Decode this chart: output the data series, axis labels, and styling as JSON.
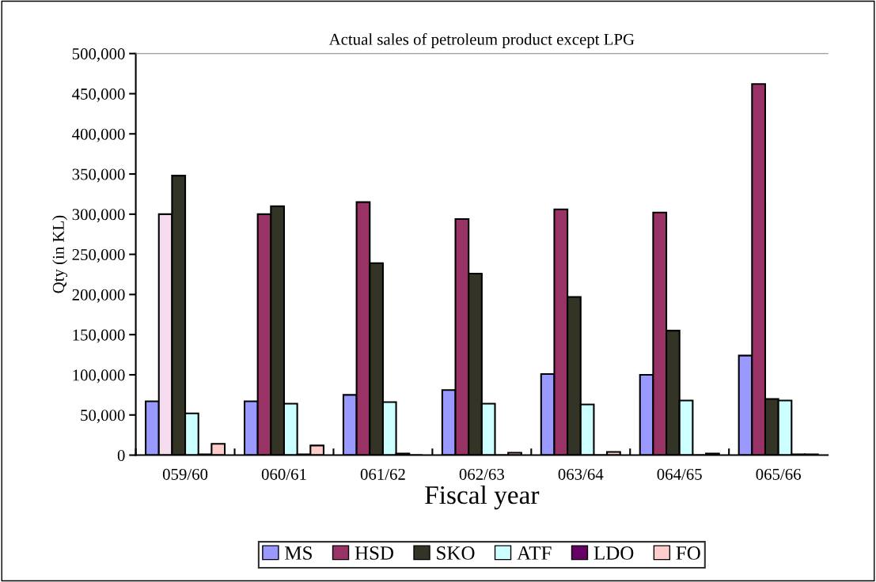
{
  "chart_data": {
    "type": "bar",
    "title": "Actual sales of petroleum product except LPG",
    "xlabel": "Fiscal year",
    "ylabel": "Qty (in KL)",
    "categories": [
      "059/60",
      "060/61",
      "061/62",
      "062/63",
      "063/64",
      "064/65",
      "065/66"
    ],
    "series": [
      {
        "name": "MS",
        "color": "#9999ff",
        "values": [
          67000,
          67000,
          75000,
          81000,
          101000,
          100000,
          124000
        ]
      },
      {
        "name": "HSD",
        "color": "#993366",
        "colors": [
          "#f6dcef",
          "#993366",
          "#993366",
          "#993366",
          "#993366",
          "#993366",
          "#993366"
        ],
        "values": [
          300000,
          300000,
          315000,
          294000,
          306000,
          302000,
          462000
        ]
      },
      {
        "name": "SKO",
        "color": "#333326",
        "values": [
          348000,
          310000,
          239000,
          226000,
          197000,
          155000,
          70000
        ]
      },
      {
        "name": "ATF",
        "color": "#ccffff",
        "values": [
          52000,
          64000,
          66000,
          64000,
          63000,
          68000,
          68000
        ]
      },
      {
        "name": "LDO",
        "color": "#660066",
        "values": [
          1000,
          1000,
          2000,
          0,
          0,
          0,
          1000
        ]
      },
      {
        "name": "FO",
        "color": "#ffcccc",
        "values": [
          14000,
          12000,
          0,
          3000,
          4000,
          2000,
          1000
        ]
      }
    ],
    "ylim": [
      0,
      500000
    ],
    "yticks": [
      {
        "value": 0,
        "label": "0"
      },
      {
        "value": 50000,
        "label": "50,000"
      },
      {
        "value": 100000,
        "label": "100,000"
      },
      {
        "value": 150000,
        "label": "150,000"
      },
      {
        "value": 200000,
        "label": "200,000"
      },
      {
        "value": 250000,
        "label": "250,000"
      },
      {
        "value": 300000,
        "label": "300,000"
      },
      {
        "value": 350000,
        "label": "350,000"
      },
      {
        "value": 400000,
        "label": "400,000"
      },
      {
        "value": 450000,
        "label": "450,000"
      },
      {
        "value": 500000,
        "label": "500,000"
      }
    ],
    "grid": false,
    "legend": "bottom"
  }
}
